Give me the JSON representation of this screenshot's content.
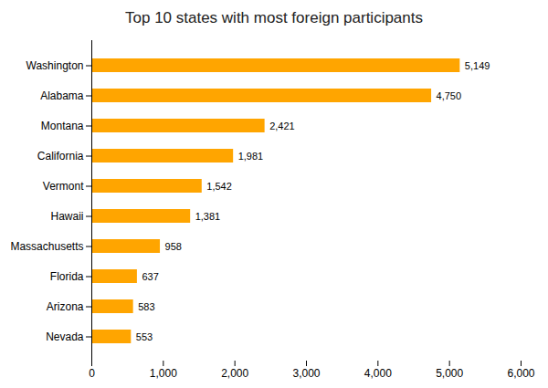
{
  "chart_data": {
    "type": "bar",
    "orientation": "horizontal",
    "title": "Top 10 states with most foreign participants",
    "categories": [
      "Nevada",
      "Arizona",
      "Florida",
      "Massachusetts",
      "Hawaii",
      "Vermont",
      "California",
      "Montana",
      "Alabama",
      "Washington"
    ],
    "values": [
      553,
      583,
      637,
      958,
      1381,
      1542,
      1981,
      2421,
      4750,
      5149
    ],
    "value_labels": [
      "553",
      "583",
      "637",
      "958",
      "1,381",
      "1,542",
      "1,981",
      "2,421",
      "4,750",
      "5,149"
    ],
    "data_labels": true,
    "color": "#FFA500",
    "xlim": [
      0,
      6000
    ],
    "xticks": [
      0,
      {
        "value": 1000,
        "label": "1,000"
      },
      {
        "value": 2000,
        "label": "2,000"
      },
      {
        "value": 3000,
        "label": "3,000"
      },
      {
        "value": 4000,
        "label": "4,000"
      },
      {
        "value": 5000,
        "label": "5,000"
      },
      {
        "value": 6000,
        "label": "6,000"
      }
    ],
    "grid": false
  }
}
